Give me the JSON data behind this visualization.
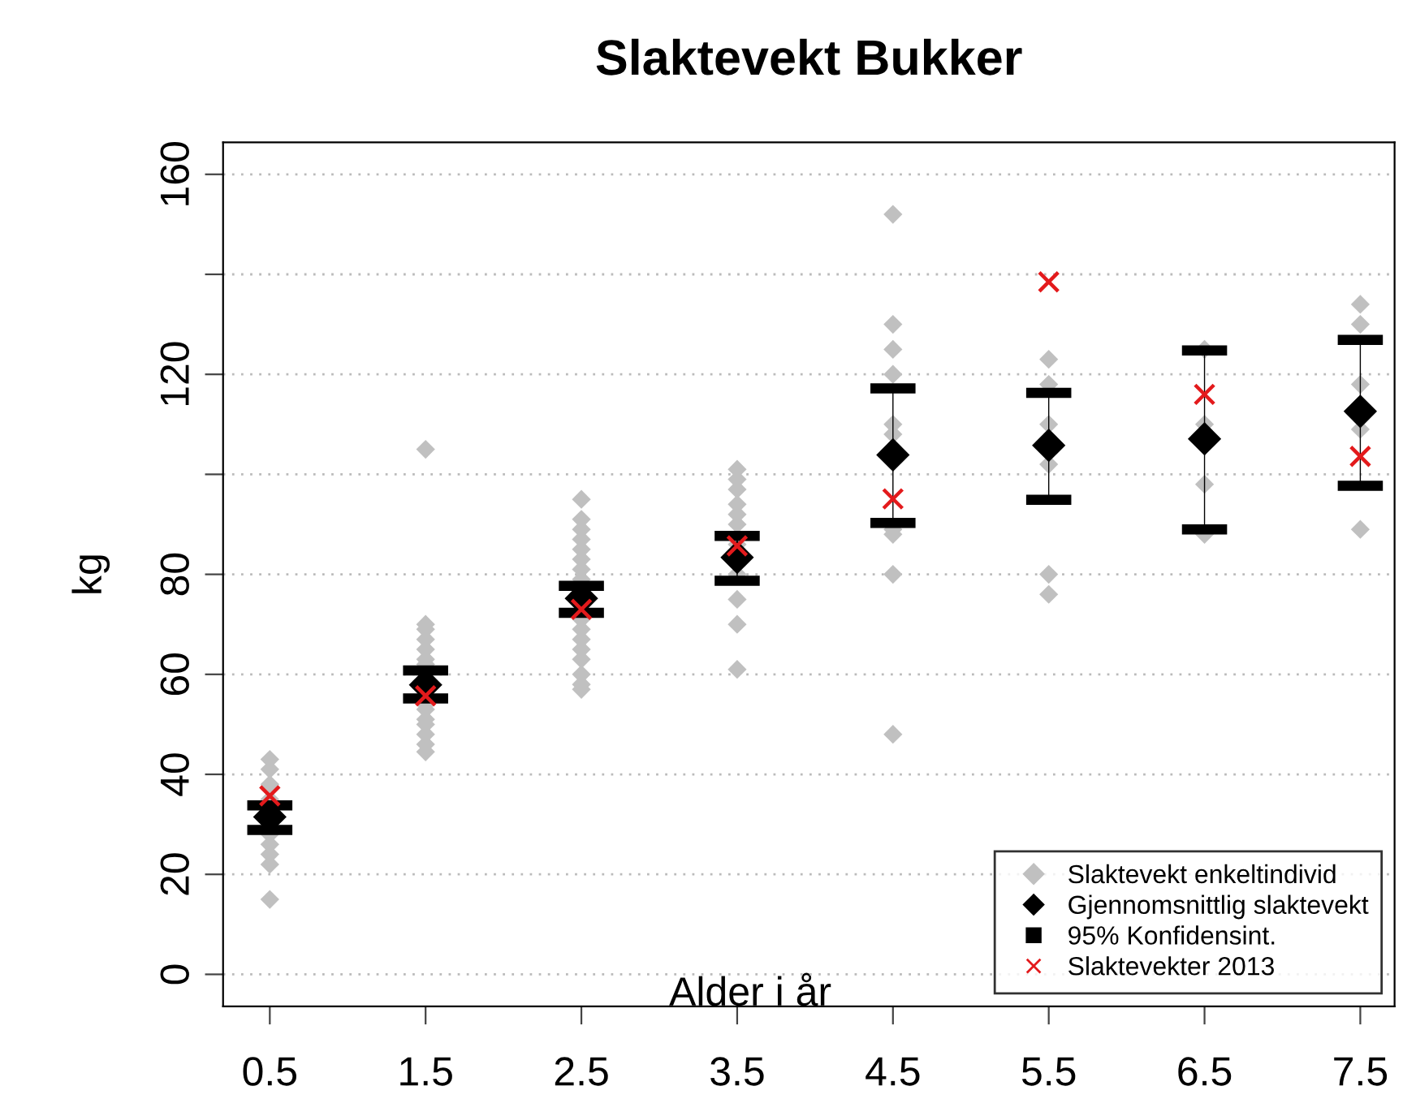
{
  "chart_data": {
    "type": "scatter",
    "title": "Slaktevekt Bukker",
    "xlabel": "Alder i år",
    "ylabel": "kg",
    "xlim": [
      0.2,
      7.72
    ],
    "xticks": [
      0.5,
      1.5,
      2.5,
      3.5,
      4.5,
      5.5,
      6.5,
      7.5
    ],
    "ylim": [
      -6.4,
      166.4
    ],
    "yticks": [
      0,
      20,
      40,
      60,
      80,
      {
        "value": 100,
        "label": null
      },
      120,
      {
        "value": 140,
        "label": null
      },
      160
    ],
    "grid": "y",
    "legend": "bottom right",
    "series": [
      {
        "name": "Slaktevekt enkeltindivid",
        "color": "#c0c0c0",
        "marker": "diamond",
        "x": [
          0.5,
          0.5,
          0.5,
          0.5,
          0.5,
          0.5,
          0.5,
          0.5,
          0.5,
          1.5,
          1.5,
          1.5,
          1.5,
          1.5,
          1.5,
          1.5,
          1.5,
          1.5,
          1.5,
          1.5,
          1.5,
          1.5,
          1.5,
          2.5,
          2.5,
          2.5,
          2.5,
          2.5,
          2.5,
          2.5,
          2.5,
          2.5,
          2.5,
          2.5,
          2.5,
          2.5,
          2.5,
          2.5,
          2.5,
          3.5,
          3.5,
          3.5,
          3.5,
          3.5,
          3.5,
          3.5,
          3.5,
          3.5,
          3.5,
          3.5,
          4.5,
          4.5,
          4.5,
          4.5,
          4.5,
          4.5,
          4.5,
          4.5,
          4.5,
          4.5,
          5.5,
          5.5,
          5.5,
          5.5,
          5.5,
          5.5,
          6.5,
          6.5,
          6.5,
          6.5,
          7.5,
          7.5,
          7.5,
          7.5,
          7.5
        ],
        "values": [
          43,
          41,
          38,
          35,
          28,
          26,
          24,
          22,
          15,
          105,
          70,
          69,
          67,
          65,
          63,
          62,
          54,
          53,
          51,
          50,
          48,
          46,
          44.5,
          95,
          91,
          89,
          87,
          85,
          83,
          81,
          79,
          71,
          69,
          67,
          65,
          63,
          60,
          58,
          57,
          101,
          99,
          97,
          94,
          92,
          90,
          86,
          80,
          75,
          70,
          61,
          152,
          130,
          125,
          120,
          110,
          108,
          89,
          88,
          80,
          48,
          123,
          118,
          110,
          102,
          80,
          76,
          125,
          110,
          98,
          88,
          134,
          130,
          118,
          109,
          89
        ]
      },
      {
        "name": "Gjennomsnittlig slaktevekt",
        "color": "#000000",
        "marker": "diamond",
        "x": [
          0.5,
          1.5,
          2.5,
          3.5,
          4.5,
          5.5,
          6.5,
          7.5
        ],
        "values": [
          31.5,
          57.9,
          75.2,
          83.4,
          103.9,
          105.8,
          107.1,
          112.6
        ],
        "errors": [
          [
            28.9,
            33.8
          ],
          [
            55.2,
            60.8
          ],
          [
            72.3,
            77.7
          ],
          [
            78.7,
            87.7
          ],
          [
            90.3,
            117.2
          ],
          [
            94.9,
            116.3
          ],
          [
            89,
            124.8
          ],
          [
            97.7,
            126.9
          ]
        ]
      },
      {
        "name": "95% Konfidensint.",
        "color": "#000000",
        "marker": "square"
      },
      {
        "name": "Slaktevekter 2013",
        "color": "#e31a1c",
        "marker": "cross",
        "x": [
          0.5,
          1.5,
          2.5,
          3.5,
          4.5,
          5.5,
          6.5,
          7.5
        ],
        "values": [
          35.7,
          55.7,
          73,
          85.7,
          95.1,
          138.5,
          116,
          103.6
        ]
      }
    ]
  }
}
